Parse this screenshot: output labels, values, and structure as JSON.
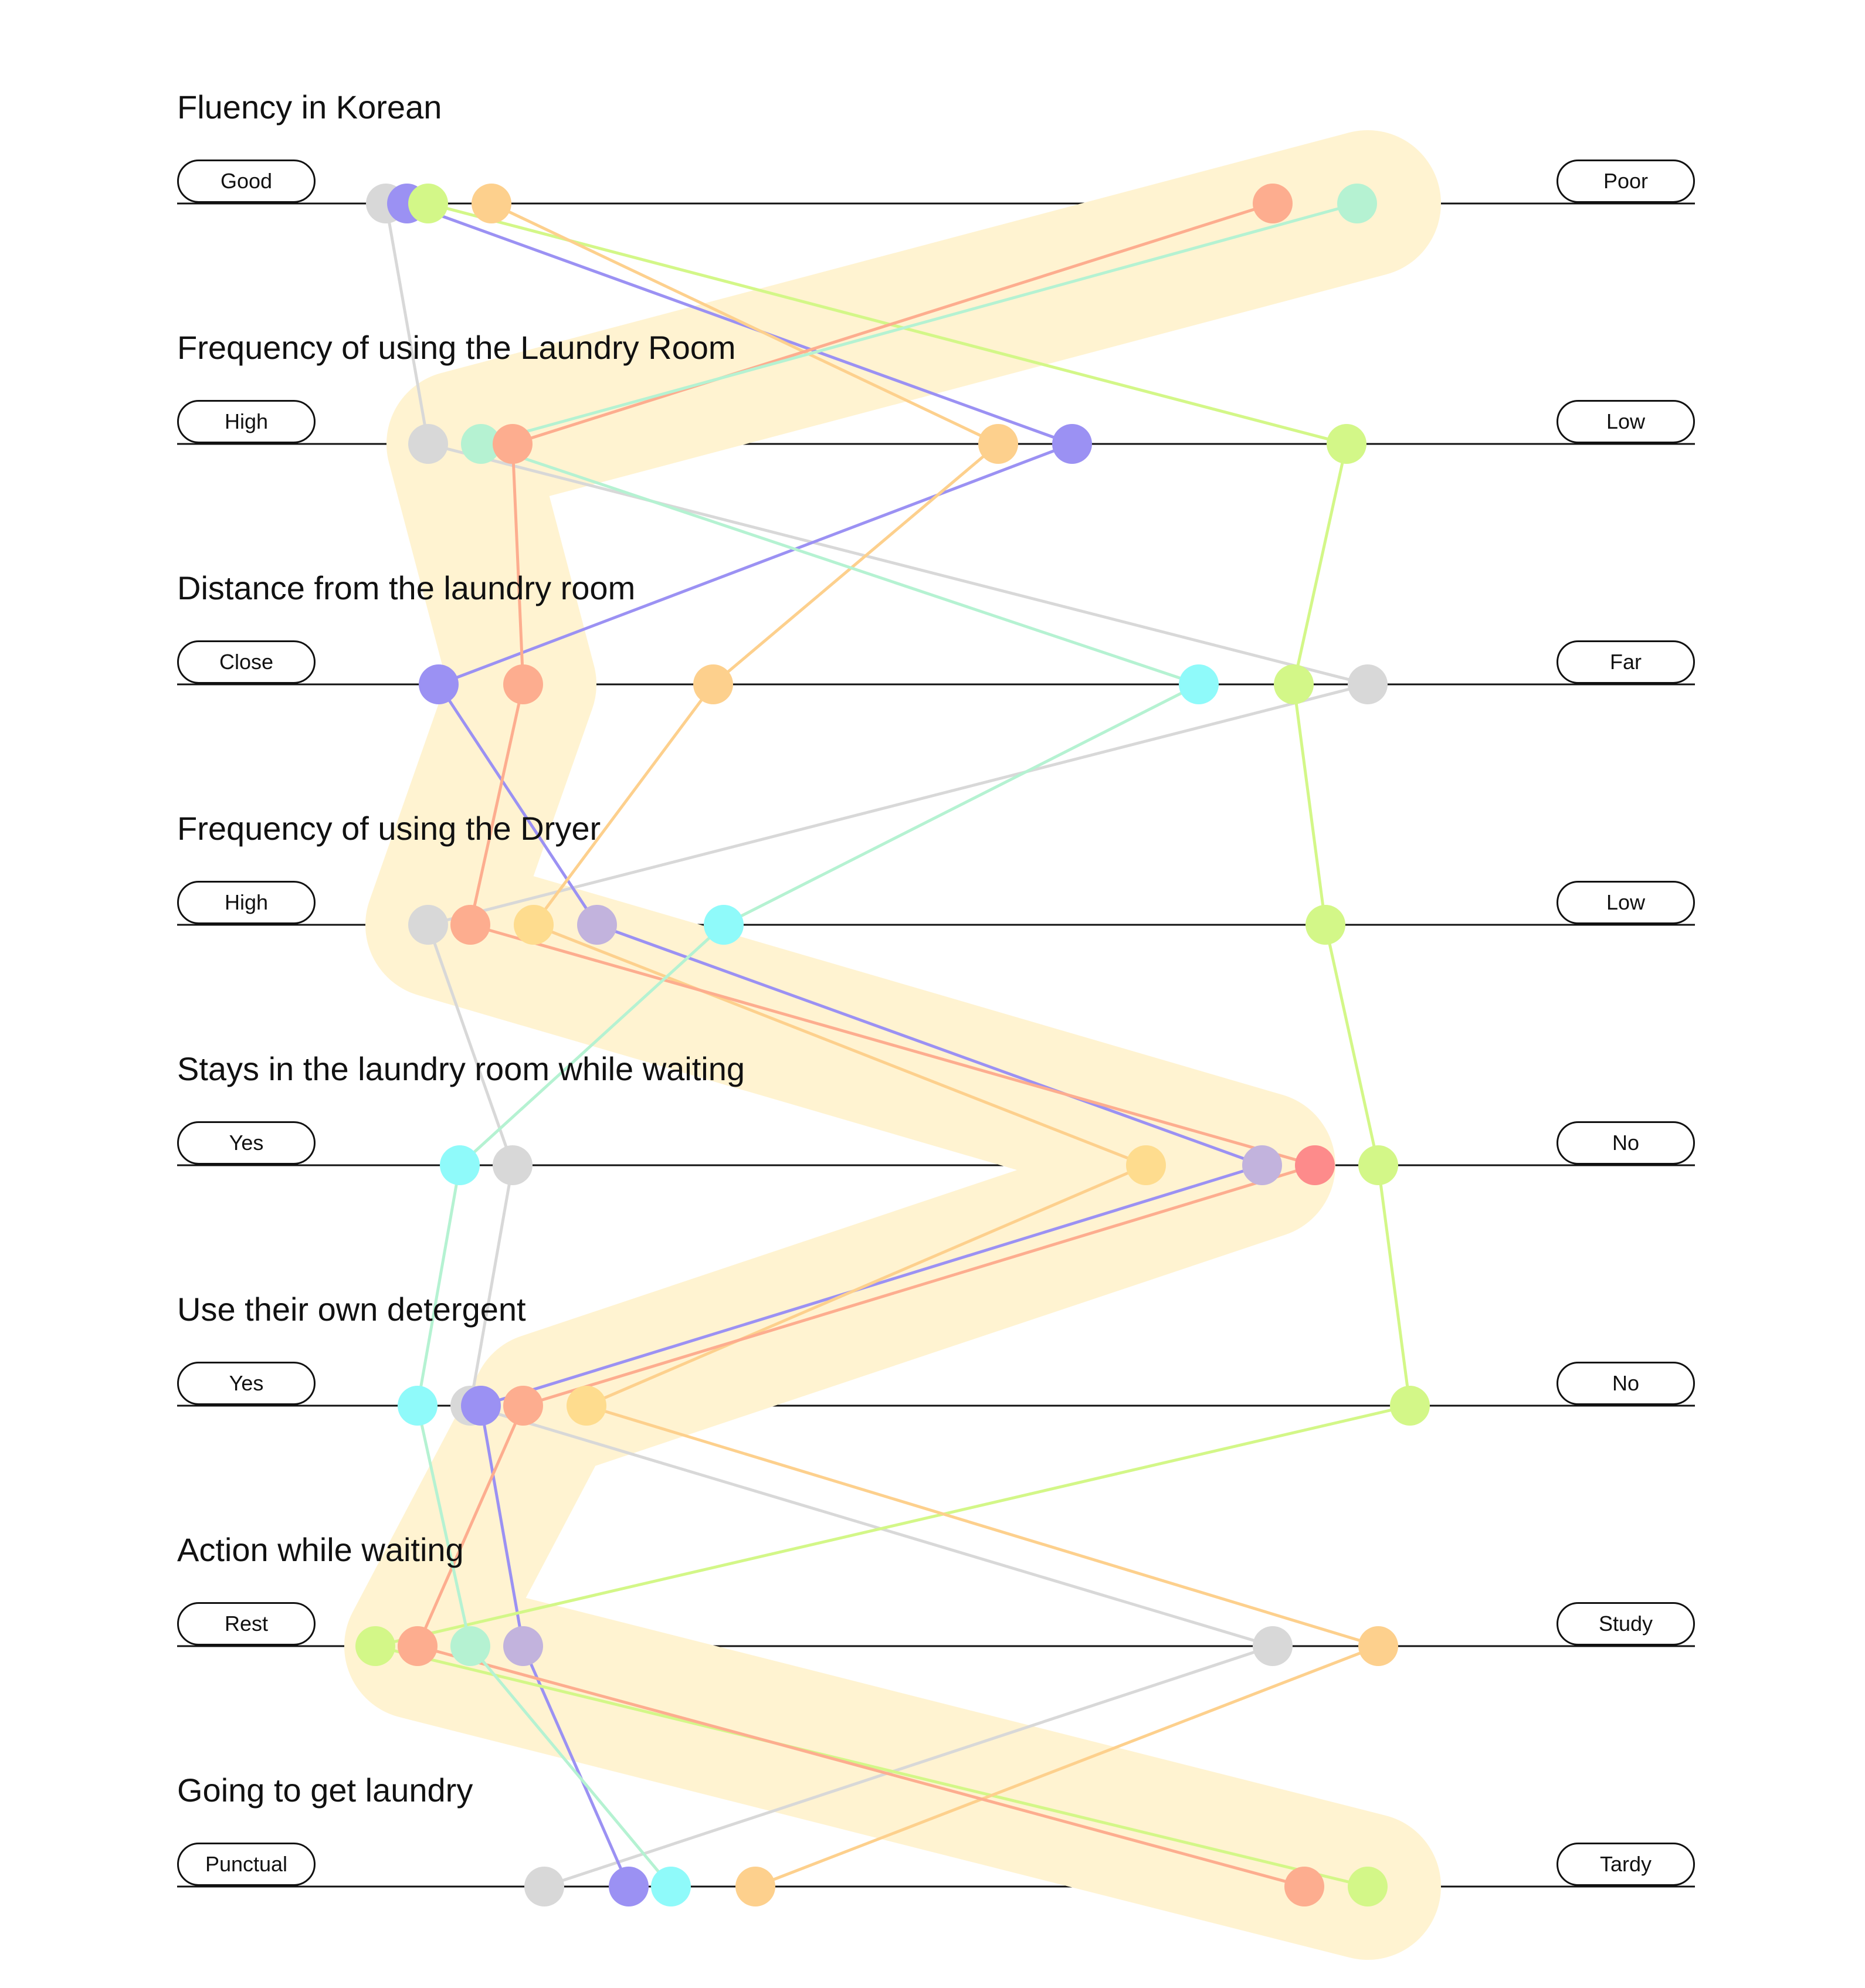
{
  "colors": {
    "highlight": "#fff3d1",
    "axis": "#111111",
    "gray": "#d8d8d8",
    "blue": "#9b91f3",
    "lime": "#d3f788",
    "orange": "#fdd08d",
    "salmon": "#fdad8f",
    "mint": "#b5f2d2",
    "cyan": "#8ffafa",
    "lavender": "#c2b3dd",
    "red": "#fd8b8b",
    "gold": "#fedc8e"
  },
  "axes": [
    {
      "title": "Fluency in Korean",
      "left_label": "Good",
      "right_label": "Poor"
    },
    {
      "title": "Frequency of using the Laundry Room",
      "left_label": "High",
      "right_label": "Low"
    },
    {
      "title": "Distance from the laundry room",
      "left_label": "Close",
      "right_label": "Far"
    },
    {
      "title": "Frequency of using the Dryer",
      "left_label": "High",
      "right_label": "Low"
    },
    {
      "title": "Stays in the laundry room while waiting",
      "left_label": "Yes",
      "right_label": "No"
    },
    {
      "title": "Use their own detergent",
      "left_label": "Yes",
      "right_label": "No"
    },
    {
      "title": "Action while waiting",
      "left_label": "Rest",
      "right_label": "Study"
    },
    {
      "title": "Going to get laundry",
      "left_label": "Punctual",
      "right_label": "Tardy"
    }
  ],
  "chart_data": {
    "type": "parallel-coordinates",
    "scale": [
      0,
      1
    ],
    "highlight_path": [
      0.94,
      0.08,
      0.14,
      0.06,
      0.84,
      0.16,
      0.04,
      0.94
    ],
    "markers": [
      {
        "axis": 0,
        "value": 0.01,
        "color": "gray"
      },
      {
        "axis": 0,
        "value": 0.03,
        "color": "blue"
      },
      {
        "axis": 0,
        "value": 0.05,
        "color": "lime"
      },
      {
        "axis": 0,
        "value": 0.11,
        "color": "orange"
      },
      {
        "axis": 0,
        "value": 0.85,
        "color": "salmon"
      },
      {
        "axis": 0,
        "value": 0.93,
        "color": "mint"
      },
      {
        "axis": 1,
        "value": 0.05,
        "color": "gray"
      },
      {
        "axis": 1,
        "value": 0.1,
        "color": "mint"
      },
      {
        "axis": 1,
        "value": 0.13,
        "color": "salmon"
      },
      {
        "axis": 1,
        "value": 0.59,
        "color": "orange"
      },
      {
        "axis": 1,
        "value": 0.66,
        "color": "blue"
      },
      {
        "axis": 1,
        "value": 0.92,
        "color": "lime"
      },
      {
        "axis": 2,
        "value": 0.06,
        "color": "blue"
      },
      {
        "axis": 2,
        "value": 0.14,
        "color": "salmon"
      },
      {
        "axis": 2,
        "value": 0.32,
        "color": "orange"
      },
      {
        "axis": 2,
        "value": 0.78,
        "color": "cyan"
      },
      {
        "axis": 2,
        "value": 0.87,
        "color": "lime"
      },
      {
        "axis": 2,
        "value": 0.94,
        "color": "gray"
      },
      {
        "axis": 3,
        "value": 0.05,
        "color": "gray"
      },
      {
        "axis": 3,
        "value": 0.09,
        "color": "salmon"
      },
      {
        "axis": 3,
        "value": 0.15,
        "color": "gold"
      },
      {
        "axis": 3,
        "value": 0.21,
        "color": "lavender"
      },
      {
        "axis": 3,
        "value": 0.33,
        "color": "cyan"
      },
      {
        "axis": 3,
        "value": 0.9,
        "color": "lime"
      },
      {
        "axis": 4,
        "value": 0.08,
        "color": "cyan"
      },
      {
        "axis": 4,
        "value": 0.13,
        "color": "gray"
      },
      {
        "axis": 4,
        "value": 0.73,
        "color": "gold"
      },
      {
        "axis": 4,
        "value": 0.84,
        "color": "lavender"
      },
      {
        "axis": 4,
        "value": 0.89,
        "color": "red"
      },
      {
        "axis": 4,
        "value": 0.95,
        "color": "lime"
      },
      {
        "axis": 5,
        "value": 0.04,
        "color": "cyan"
      },
      {
        "axis": 5,
        "value": 0.09,
        "color": "gray"
      },
      {
        "axis": 5,
        "value": 0.1,
        "color": "blue"
      },
      {
        "axis": 5,
        "value": 0.14,
        "color": "salmon"
      },
      {
        "axis": 5,
        "value": 0.2,
        "color": "gold"
      },
      {
        "axis": 5,
        "value": 0.98,
        "color": "lime"
      },
      {
        "axis": 6,
        "value": 0.0,
        "color": "lime"
      },
      {
        "axis": 6,
        "value": 0.04,
        "color": "salmon"
      },
      {
        "axis": 6,
        "value": 0.09,
        "color": "mint"
      },
      {
        "axis": 6,
        "value": 0.14,
        "color": "lavender"
      },
      {
        "axis": 6,
        "value": 0.85,
        "color": "gray"
      },
      {
        "axis": 6,
        "value": 0.95,
        "color": "orange"
      },
      {
        "axis": 7,
        "value": 0.16,
        "color": "gray"
      },
      {
        "axis": 7,
        "value": 0.24,
        "color": "blue"
      },
      {
        "axis": 7,
        "value": 0.28,
        "color": "cyan"
      },
      {
        "axis": 7,
        "value": 0.36,
        "color": "orange"
      },
      {
        "axis": 7,
        "value": 0.88,
        "color": "salmon"
      },
      {
        "axis": 7,
        "value": 0.94,
        "color": "lime"
      }
    ],
    "series": [
      {
        "color": "gray",
        "values": [
          0.01,
          0.05,
          0.94,
          0.05,
          0.13,
          0.09,
          0.85,
          0.16
        ]
      },
      {
        "color": "blue",
        "values": [
          0.03,
          0.66,
          0.06,
          0.21,
          0.84,
          0.1,
          0.14,
          0.24
        ]
      },
      {
        "color": "lime",
        "values": [
          0.05,
          0.92,
          0.87,
          0.9,
          0.95,
          0.98,
          0.0,
          0.94
        ]
      },
      {
        "color": "orange",
        "values": [
          0.11,
          0.59,
          0.32,
          0.15,
          0.73,
          0.2,
          0.95,
          0.36
        ]
      },
      {
        "color": "salmon",
        "values": [
          0.85,
          0.13,
          0.14,
          0.09,
          0.89,
          0.14,
          0.04,
          0.88
        ]
      },
      {
        "color": "mint",
        "values": [
          0.93,
          0.1,
          0.78,
          0.33,
          0.08,
          0.04,
          0.09,
          0.28
        ]
      }
    ]
  }
}
